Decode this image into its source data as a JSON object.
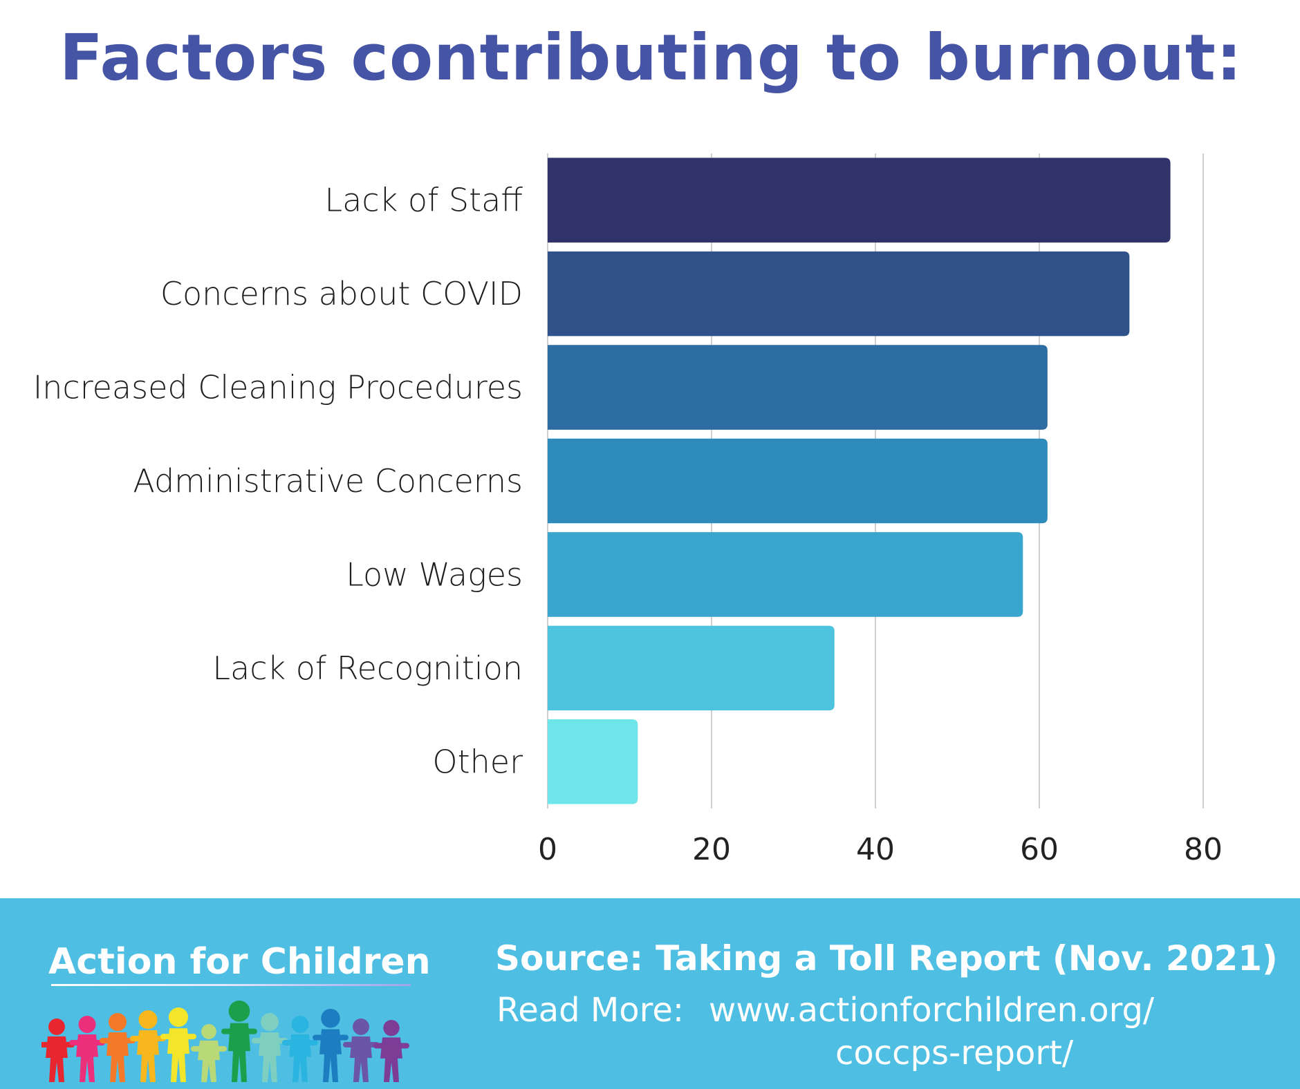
{
  "chart_data": {
    "type": "bar",
    "orientation": "horizontal",
    "title": "Factors contributing to burnout:",
    "categories": [
      "Lack of Staff",
      "Concerns about COVID",
      "Increased Cleaning Procedures",
      "Administrative Concerns",
      "Low Wages",
      "Lack of Recognition",
      "Other"
    ],
    "values": [
      76,
      71,
      61,
      61,
      58,
      35,
      11
    ],
    "colors": [
      "#303369",
      "#30518a",
      "#2e6da2",
      "#2e8bbb",
      "#3ba6cd",
      "#4dc3dd",
      "#6ee5e8"
    ],
    "xlim": [
      0,
      80
    ],
    "xticks": [
      "0",
      "20",
      "40",
      "60",
      "80"
    ],
    "grid": "vertical"
  },
  "footer": {
    "org_name": "Action for Children",
    "source_label": "Source:",
    "source_text": "Taking a Toll Report (Nov. 2021)",
    "readmore_label": "Read More:",
    "readmore_url_line1": "www.actionforchildren.org/",
    "readmore_url_line2": "coccps-report/",
    "logo_colors": [
      "#e8262f",
      "#ec2f7a",
      "#f47a2a",
      "#f8b71d",
      "#f3e52a",
      "#b9d878",
      "#1aa04a",
      "#7ecfc0",
      "#29b5e0",
      "#1d7dc1",
      "#6b55a6",
      "#7d3d97"
    ]
  }
}
